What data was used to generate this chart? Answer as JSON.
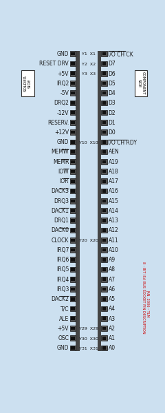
{
  "bg_color": "#cce0f0",
  "text_color": "#1a1a1a",
  "left_pins": [
    "GND",
    "RESET DRV",
    "+5V",
    "IRQ2",
    "-5V",
    "DRQ2",
    "-12V",
    "RESERV.",
    "+12V",
    "GND",
    "MEMW",
    "MEMR",
    "IOW",
    "IOR",
    "DACK3",
    "DRQ3",
    "DACK1",
    "DRQ1",
    "DACK0",
    "CLOCK",
    "IRQ7",
    "IRQ6",
    "IRQ5",
    "IRQ4",
    "IRQ3",
    "DACK2",
    "T/C",
    "ALE",
    "+5V",
    "OSC",
    "GND"
  ],
  "right_pins": [
    "I/O CH CK",
    "D7",
    "D6",
    "D5",
    "D4",
    "D3",
    "D2",
    "D1",
    "D0",
    "I/O CH RDY",
    "AEN",
    "A19",
    "A18",
    "A17",
    "A16",
    "A15",
    "A14",
    "A13",
    "A12",
    "A11",
    "A10",
    "A9",
    "A8",
    "A7",
    "A6",
    "A5",
    "A4",
    "A3",
    "A2",
    "A1",
    "A0"
  ],
  "left_labels": [
    "Y1",
    "Y2",
    "Y3",
    "",
    "",
    "",
    "",
    "",
    "",
    "Y10",
    "",
    "",
    "",
    "",
    "",
    "",
    "",
    "",
    "",
    "Y20",
    "",
    "",
    "",
    "",
    "",
    "",
    "",
    "",
    "Y29",
    "Y30",
    "Y31"
  ],
  "right_labels": [
    "X1",
    "X2",
    "X3",
    "",
    "",
    "",
    "",
    "",
    "",
    "X10",
    "",
    "",
    "",
    "",
    "",
    "",
    "",
    "",
    "",
    "X20",
    "",
    "",
    "",
    "",
    "",
    "",
    "",
    "",
    "X29",
    "X30",
    "X31"
  ],
  "overlined_left": [
    "MEMW",
    "MEMR",
    "IOW",
    "IOR",
    "DACK3",
    "DACK1",
    "DACK0",
    "DACK2"
  ],
  "overlined_right": [
    "I/O CH CK",
    "I/O CH RDY"
  ],
  "socket_color": "#555555",
  "socket_inner_color": "#222222",
  "bar_color": "#333333"
}
